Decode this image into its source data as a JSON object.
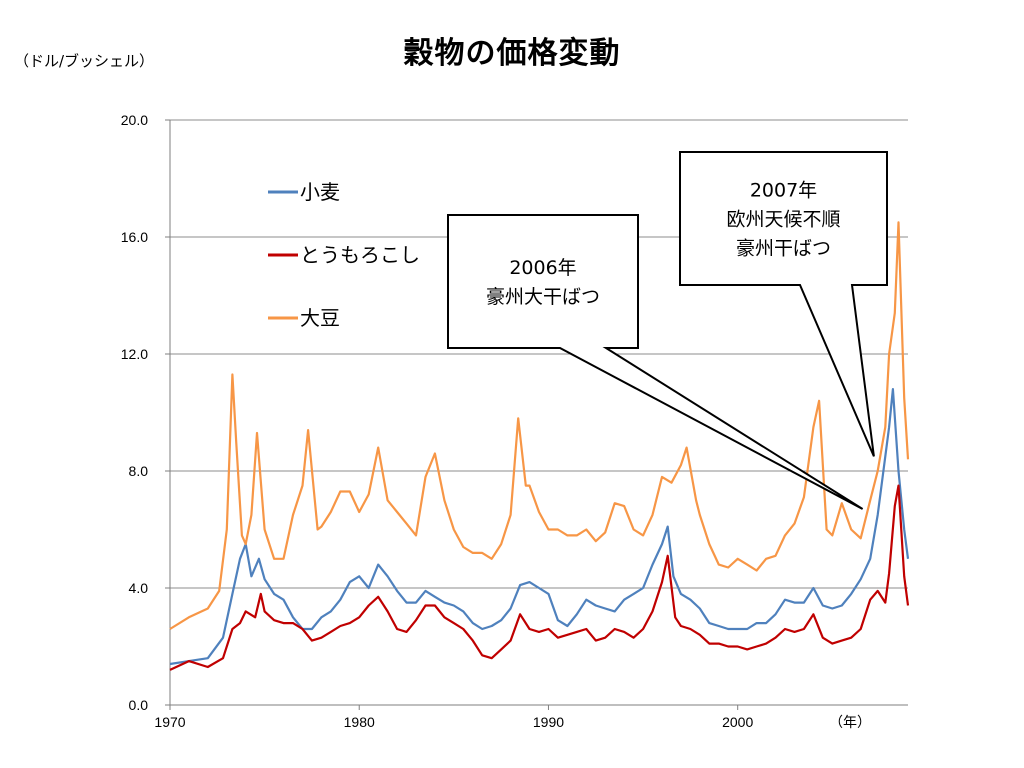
{
  "chart_data": {
    "type": "line",
    "title": "穀物の価格変動",
    "ylabel": "（ドル/ブッシェル）",
    "xlabel": "（年）",
    "xlim": [
      1970,
      2009
    ],
    "ylim": [
      0,
      20
    ],
    "y_ticks": [
      "0.0",
      "4.0",
      "8.0",
      "12.0",
      "16.0",
      "20.0"
    ],
    "x_ticks": [
      "1970",
      "1980",
      "1990",
      "2000"
    ],
    "grid": true,
    "legend_position": "top-left",
    "series": [
      {
        "name": "小麦",
        "color": "#4f81bd",
        "points": [
          [
            1970.0,
            1.4
          ],
          [
            1971.0,
            1.5
          ],
          [
            1972.0,
            1.6
          ],
          [
            1972.8,
            2.3
          ],
          [
            1973.3,
            3.8
          ],
          [
            1973.7,
            5.0
          ],
          [
            1974.0,
            5.5
          ],
          [
            1974.3,
            4.4
          ],
          [
            1974.7,
            5.0
          ],
          [
            1975.0,
            4.3
          ],
          [
            1975.5,
            3.8
          ],
          [
            1976.0,
            3.6
          ],
          [
            1976.5,
            3.0
          ],
          [
            1977.0,
            2.6
          ],
          [
            1977.5,
            2.6
          ],
          [
            1978.0,
            3.0
          ],
          [
            1978.5,
            3.2
          ],
          [
            1979.0,
            3.6
          ],
          [
            1979.5,
            4.2
          ],
          [
            1980.0,
            4.4
          ],
          [
            1980.5,
            4.0
          ],
          [
            1981.0,
            4.8
          ],
          [
            1981.5,
            4.4
          ],
          [
            1982.0,
            3.9
          ],
          [
            1982.5,
            3.5
          ],
          [
            1983.0,
            3.5
          ],
          [
            1983.5,
            3.9
          ],
          [
            1984.0,
            3.7
          ],
          [
            1984.5,
            3.5
          ],
          [
            1985.0,
            3.4
          ],
          [
            1985.5,
            3.2
          ],
          [
            1986.0,
            2.8
          ],
          [
            1986.5,
            2.6
          ],
          [
            1987.0,
            2.7
          ],
          [
            1987.5,
            2.9
          ],
          [
            1988.0,
            3.3
          ],
          [
            1988.5,
            4.1
          ],
          [
            1989.0,
            4.2
          ],
          [
            1989.5,
            4.0
          ],
          [
            1990.0,
            3.8
          ],
          [
            1990.5,
            2.9
          ],
          [
            1991.0,
            2.7
          ],
          [
            1991.5,
            3.1
          ],
          [
            1992.0,
            3.6
          ],
          [
            1992.5,
            3.4
          ],
          [
            1993.0,
            3.3
          ],
          [
            1993.5,
            3.2
          ],
          [
            1994.0,
            3.6
          ],
          [
            1994.5,
            3.8
          ],
          [
            1995.0,
            4.0
          ],
          [
            1995.5,
            4.8
          ],
          [
            1996.0,
            5.5
          ],
          [
            1996.3,
            6.1
          ],
          [
            1996.6,
            4.4
          ],
          [
            1997.0,
            3.8
          ],
          [
            1997.5,
            3.6
          ],
          [
            1998.0,
            3.3
          ],
          [
            1998.5,
            2.8
          ],
          [
            1999.0,
            2.7
          ],
          [
            1999.5,
            2.6
          ],
          [
            2000.0,
            2.6
          ],
          [
            2000.5,
            2.6
          ],
          [
            2001.0,
            2.8
          ],
          [
            2001.5,
            2.8
          ],
          [
            2002.0,
            3.1
          ],
          [
            2002.5,
            3.6
          ],
          [
            2003.0,
            3.5
          ],
          [
            2003.5,
            3.5
          ],
          [
            2004.0,
            4.0
          ],
          [
            2004.5,
            3.4
          ],
          [
            2005.0,
            3.3
          ],
          [
            2005.5,
            3.4
          ],
          [
            2006.0,
            3.8
          ],
          [
            2006.5,
            4.3
          ],
          [
            2007.0,
            5.0
          ],
          [
            2007.4,
            6.5
          ],
          [
            2007.8,
            8.5
          ],
          [
            2008.0,
            9.5
          ],
          [
            2008.2,
            10.8
          ],
          [
            2008.5,
            8.0
          ],
          [
            2008.8,
            6.0
          ],
          [
            2009.0,
            5.0
          ]
        ]
      },
      {
        "name": "とうもろこし",
        "color": "#c00000",
        "points": [
          [
            1970.0,
            1.2
          ],
          [
            1971.0,
            1.5
          ],
          [
            1972.0,
            1.3
          ],
          [
            1972.8,
            1.6
          ],
          [
            1973.3,
            2.6
          ],
          [
            1973.7,
            2.8
          ],
          [
            1974.0,
            3.2
          ],
          [
            1974.5,
            3.0
          ],
          [
            1974.8,
            3.8
          ],
          [
            1975.0,
            3.2
          ],
          [
            1975.5,
            2.9
          ],
          [
            1976.0,
            2.8
          ],
          [
            1976.5,
            2.8
          ],
          [
            1977.0,
            2.6
          ],
          [
            1977.5,
            2.2
          ],
          [
            1978.0,
            2.3
          ],
          [
            1978.5,
            2.5
          ],
          [
            1979.0,
            2.7
          ],
          [
            1979.5,
            2.8
          ],
          [
            1980.0,
            3.0
          ],
          [
            1980.5,
            3.4
          ],
          [
            1981.0,
            3.7
          ],
          [
            1981.5,
            3.2
          ],
          [
            1982.0,
            2.6
          ],
          [
            1982.5,
            2.5
          ],
          [
            1983.0,
            2.9
          ],
          [
            1983.5,
            3.4
          ],
          [
            1984.0,
            3.4
          ],
          [
            1984.5,
            3.0
          ],
          [
            1985.0,
            2.8
          ],
          [
            1985.5,
            2.6
          ],
          [
            1986.0,
            2.2
          ],
          [
            1986.5,
            1.7
          ],
          [
            1987.0,
            1.6
          ],
          [
            1987.5,
            1.9
          ],
          [
            1988.0,
            2.2
          ],
          [
            1988.5,
            3.1
          ],
          [
            1989.0,
            2.6
          ],
          [
            1989.5,
            2.5
          ],
          [
            1990.0,
            2.6
          ],
          [
            1990.5,
            2.3
          ],
          [
            1991.0,
            2.4
          ],
          [
            1991.5,
            2.5
          ],
          [
            1992.0,
            2.6
          ],
          [
            1992.5,
            2.2
          ],
          [
            1993.0,
            2.3
          ],
          [
            1993.5,
            2.6
          ],
          [
            1994.0,
            2.5
          ],
          [
            1994.5,
            2.3
          ],
          [
            1995.0,
            2.6
          ],
          [
            1995.5,
            3.2
          ],
          [
            1996.0,
            4.2
          ],
          [
            1996.3,
            5.1
          ],
          [
            1996.7,
            3.0
          ],
          [
            1997.0,
            2.7
          ],
          [
            1997.5,
            2.6
          ],
          [
            1998.0,
            2.4
          ],
          [
            1998.5,
            2.1
          ],
          [
            1999.0,
            2.1
          ],
          [
            1999.5,
            2.0
          ],
          [
            2000.0,
            2.0
          ],
          [
            2000.5,
            1.9
          ],
          [
            2001.0,
            2.0
          ],
          [
            2001.5,
            2.1
          ],
          [
            2002.0,
            2.3
          ],
          [
            2002.5,
            2.6
          ],
          [
            2003.0,
            2.5
          ],
          [
            2003.5,
            2.6
          ],
          [
            2004.0,
            3.1
          ],
          [
            2004.5,
            2.3
          ],
          [
            2005.0,
            2.1
          ],
          [
            2005.5,
            2.2
          ],
          [
            2006.0,
            2.3
          ],
          [
            2006.5,
            2.6
          ],
          [
            2007.0,
            3.6
          ],
          [
            2007.4,
            3.9
          ],
          [
            2007.8,
            3.5
          ],
          [
            2008.0,
            4.5
          ],
          [
            2008.3,
            6.8
          ],
          [
            2008.5,
            7.5
          ],
          [
            2008.8,
            4.4
          ],
          [
            2009.0,
            3.4
          ]
        ]
      },
      {
        "name": "大豆",
        "color": "#f79646",
        "points": [
          [
            1970.0,
            2.6
          ],
          [
            1971.0,
            3.0
          ],
          [
            1972.0,
            3.3
          ],
          [
            1972.6,
            3.9
          ],
          [
            1973.0,
            6.0
          ],
          [
            1973.3,
            11.3
          ],
          [
            1973.5,
            9.0
          ],
          [
            1973.8,
            5.8
          ],
          [
            1974.0,
            5.5
          ],
          [
            1974.3,
            6.5
          ],
          [
            1974.6,
            9.3
          ],
          [
            1975.0,
            6.0
          ],
          [
            1975.5,
            5.0
          ],
          [
            1976.0,
            5.0
          ],
          [
            1976.5,
            6.5
          ],
          [
            1977.0,
            7.5
          ],
          [
            1977.3,
            9.4
          ],
          [
            1977.8,
            6.0
          ],
          [
            1978.0,
            6.1
          ],
          [
            1978.5,
            6.6
          ],
          [
            1979.0,
            7.3
          ],
          [
            1979.5,
            7.3
          ],
          [
            1980.0,
            6.6
          ],
          [
            1980.5,
            7.2
          ],
          [
            1981.0,
            8.8
          ],
          [
            1981.5,
            7.0
          ],
          [
            1982.0,
            6.6
          ],
          [
            1982.5,
            6.2
          ],
          [
            1983.0,
            5.8
          ],
          [
            1983.5,
            7.8
          ],
          [
            1984.0,
            8.6
          ],
          [
            1984.5,
            7.0
          ],
          [
            1985.0,
            6.0
          ],
          [
            1985.5,
            5.4
          ],
          [
            1986.0,
            5.2
          ],
          [
            1986.5,
            5.2
          ],
          [
            1987.0,
            5.0
          ],
          [
            1987.5,
            5.5
          ],
          [
            1988.0,
            6.5
          ],
          [
            1988.4,
            9.8
          ],
          [
            1988.8,
            7.5
          ],
          [
            1989.0,
            7.5
          ],
          [
            1989.5,
            6.6
          ],
          [
            1990.0,
            6.0
          ],
          [
            1990.5,
            6.0
          ],
          [
            1991.0,
            5.8
          ],
          [
            1991.5,
            5.8
          ],
          [
            1992.0,
            6.0
          ],
          [
            1992.5,
            5.6
          ],
          [
            1993.0,
            5.9
          ],
          [
            1993.5,
            6.9
          ],
          [
            1994.0,
            6.8
          ],
          [
            1994.5,
            6.0
          ],
          [
            1995.0,
            5.8
          ],
          [
            1995.5,
            6.5
          ],
          [
            1996.0,
            7.8
          ],
          [
            1996.5,
            7.6
          ],
          [
            1997.0,
            8.2
          ],
          [
            1997.3,
            8.8
          ],
          [
            1997.8,
            7.0
          ],
          [
            1998.0,
            6.5
          ],
          [
            1998.5,
            5.5
          ],
          [
            1999.0,
            4.8
          ],
          [
            1999.5,
            4.7
          ],
          [
            2000.0,
            5.0
          ],
          [
            2000.5,
            4.8
          ],
          [
            2001.0,
            4.6
          ],
          [
            2001.5,
            5.0
          ],
          [
            2002.0,
            5.1
          ],
          [
            2002.5,
            5.8
          ],
          [
            2003.0,
            6.2
          ],
          [
            2003.5,
            7.1
          ],
          [
            2004.0,
            9.5
          ],
          [
            2004.3,
            10.4
          ],
          [
            2004.7,
            6.0
          ],
          [
            2005.0,
            5.8
          ],
          [
            2005.5,
            6.9
          ],
          [
            2006.0,
            6.0
          ],
          [
            2006.5,
            5.7
          ],
          [
            2007.0,
            7.0
          ],
          [
            2007.4,
            8.0
          ],
          [
            2007.8,
            9.5
          ],
          [
            2008.0,
            12.0
          ],
          [
            2008.3,
            13.4
          ],
          [
            2008.5,
            16.5
          ],
          [
            2008.8,
            10.5
          ],
          [
            2009.0,
            8.4
          ]
        ]
      }
    ],
    "annotations": [
      {
        "lines": [
          "2006年",
          "豪州大干ばつ"
        ],
        "point_to": [
          2006.6,
          6.7
        ]
      },
      {
        "lines": [
          "2007年",
          "欧州天候不順",
          "豪州干ばつ"
        ],
        "point_to": [
          2007.2,
          8.5
        ]
      }
    ]
  }
}
